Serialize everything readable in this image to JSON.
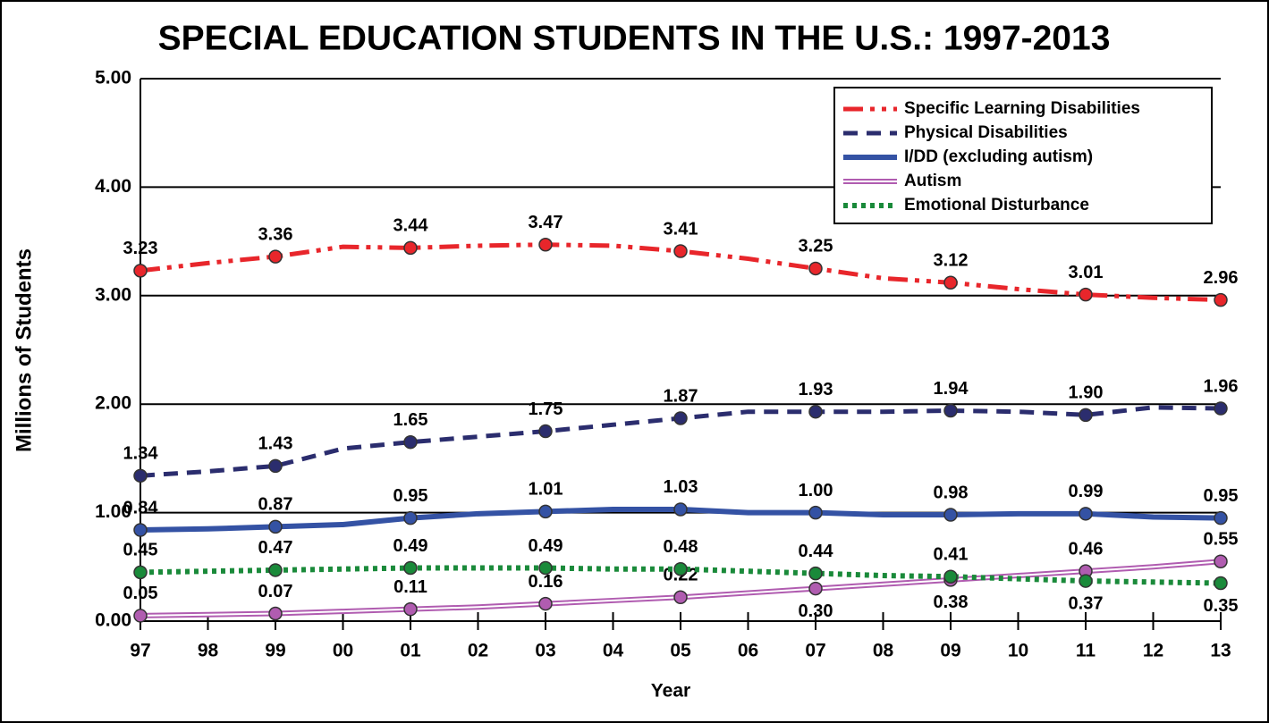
{
  "chart_data": {
    "type": "line",
    "title": "SPECIAL EDUCATION STUDENTS IN THE U.S.: 1997-2013",
    "x_label": "Year",
    "y_label": "Millions of Students",
    "categories": [
      "97",
      "98",
      "99",
      "00",
      "01",
      "02",
      "03",
      "04",
      "05",
      "06",
      "07",
      "08",
      "09",
      "10",
      "11",
      "12",
      "13"
    ],
    "ylim": [
      0,
      5
    ],
    "yticks": [
      {
        "value": 0,
        "label": "0.00"
      },
      {
        "value": 1,
        "label": "1.00"
      },
      {
        "value": 2,
        "label": "2.00"
      },
      {
        "value": 3,
        "label": "3.00"
      },
      {
        "value": 4,
        "label": "4.00"
      },
      {
        "value": 5,
        "label": "5.00"
      }
    ],
    "grid": true,
    "legend": "top-right",
    "series": [
      {
        "name": "Specific Learning Disabilities",
        "color": "#e8262b",
        "style": "dash-dot-dot",
        "values": [
          3.23,
          3.3,
          3.36,
          3.45,
          3.44,
          3.46,
          3.47,
          3.46,
          3.41,
          3.34,
          3.25,
          3.16,
          3.12,
          3.06,
          3.01,
          2.98,
          2.96
        ],
        "value_labels": [
          "3.23",
          null,
          "3.36",
          null,
          "3.44",
          null,
          "3.47",
          null,
          "3.41",
          null,
          "3.25",
          null,
          "3.12",
          null,
          "3.01",
          null,
          "2.96"
        ]
      },
      {
        "name": "Physical Disabilities",
        "color": "#2b2d6e",
        "style": "dashed",
        "values": [
          1.34,
          1.38,
          1.43,
          1.59,
          1.65,
          1.7,
          1.75,
          1.81,
          1.87,
          1.93,
          1.93,
          1.93,
          1.94,
          1.93,
          1.9,
          1.97,
          1.96
        ],
        "value_labels": [
          "1.34",
          null,
          "1.43",
          null,
          "1.65",
          null,
          "1.75",
          null,
          "1.87",
          null,
          "1.93",
          null,
          "1.94",
          null,
          "1.90",
          null,
          "1.96"
        ]
      },
      {
        "name": "I/DD (excluding autism)",
        "color": "#3452a4",
        "style": "solid",
        "values": [
          0.84,
          0.85,
          0.87,
          0.89,
          0.95,
          0.99,
          1.01,
          1.03,
          1.03,
          1.0,
          1.0,
          0.98,
          0.98,
          0.99,
          0.99,
          0.96,
          0.95
        ],
        "value_labels": [
          "0.84",
          null,
          "0.87",
          null,
          "0.95",
          null,
          "1.01",
          null,
          "1.03",
          null,
          "1.00",
          null,
          "0.98",
          null,
          "0.99",
          null,
          "0.95"
        ]
      },
      {
        "name": "Autism",
        "color": "#b05cb0",
        "style": "double",
        "values": [
          0.05,
          0.06,
          0.07,
          0.09,
          0.11,
          0.13,
          0.16,
          0.19,
          0.22,
          0.26,
          0.3,
          0.34,
          0.38,
          0.42,
          0.46,
          0.5,
          0.55
        ],
        "value_labels": [
          "0.05",
          null,
          "0.07",
          null,
          "0.11",
          null,
          "0.16",
          null,
          "0.22",
          null,
          "0.30",
          null,
          "0.38",
          null,
          "0.46",
          null,
          "0.55"
        ]
      },
      {
        "name": "Emotional Disturbance",
        "color": "#1a8a3a",
        "style": "dotted",
        "values": [
          0.45,
          0.46,
          0.47,
          0.48,
          0.49,
          0.49,
          0.49,
          0.48,
          0.48,
          0.46,
          0.44,
          0.42,
          0.41,
          0.39,
          0.37,
          0.36,
          0.35
        ],
        "value_labels": [
          "0.45",
          null,
          "0.47",
          null,
          "0.49",
          null,
          "0.49",
          null,
          "0.48",
          null,
          "0.44",
          null,
          "0.41",
          null,
          "0.37",
          null,
          "0.35"
        ]
      }
    ]
  }
}
